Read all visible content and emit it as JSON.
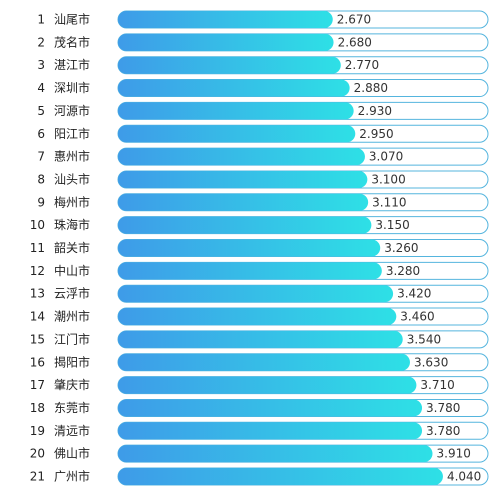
{
  "chart_data": {
    "type": "bar",
    "orientation": "horizontal",
    "categories": [
      "汕尾市",
      "茂名市",
      "湛江市",
      "深圳市",
      "河源市",
      "阳江市",
      "惠州市",
      "汕头市",
      "梅州市",
      "珠海市",
      "韶关市",
      "中山市",
      "云浮市",
      "潮州市",
      "江门市",
      "揭阳市",
      "肇庆市",
      "东莞市",
      "清远市",
      "佛山市",
      "广州市"
    ],
    "ranks": [
      "1",
      "2",
      "3",
      "4",
      "5",
      "6",
      "7",
      "8",
      "9",
      "10",
      "11",
      "12",
      "13",
      "14",
      "15",
      "16",
      "17",
      "18",
      "19",
      "20",
      "21"
    ],
    "values": [
      2.67,
      2.68,
      2.77,
      2.88,
      2.93,
      2.95,
      3.07,
      3.1,
      3.11,
      3.15,
      3.26,
      3.28,
      3.42,
      3.46,
      3.54,
      3.63,
      3.71,
      3.78,
      3.78,
      3.91,
      4.04
    ],
    "value_labels": [
      "2.670",
      "2.680",
      "2.770",
      "2.880",
      "2.930",
      "2.950",
      "3.070",
      "3.100",
      "3.110",
      "3.150",
      "3.260",
      "3.280",
      "3.420",
      "3.460",
      "3.540",
      "3.630",
      "3.710",
      "3.780",
      "3.780",
      "3.910",
      "4.040"
    ],
    "xlim": [
      0,
      4.6
    ],
    "title": "",
    "xlabel": "",
    "ylabel": "",
    "grid": false,
    "legend": "none"
  },
  "colors": {
    "bar_start": "#3e9be8",
    "bar_end": "#2ee0e6",
    "track_border": "#55b5de",
    "track_fill": "#ffffff",
    "text": "#222222"
  }
}
